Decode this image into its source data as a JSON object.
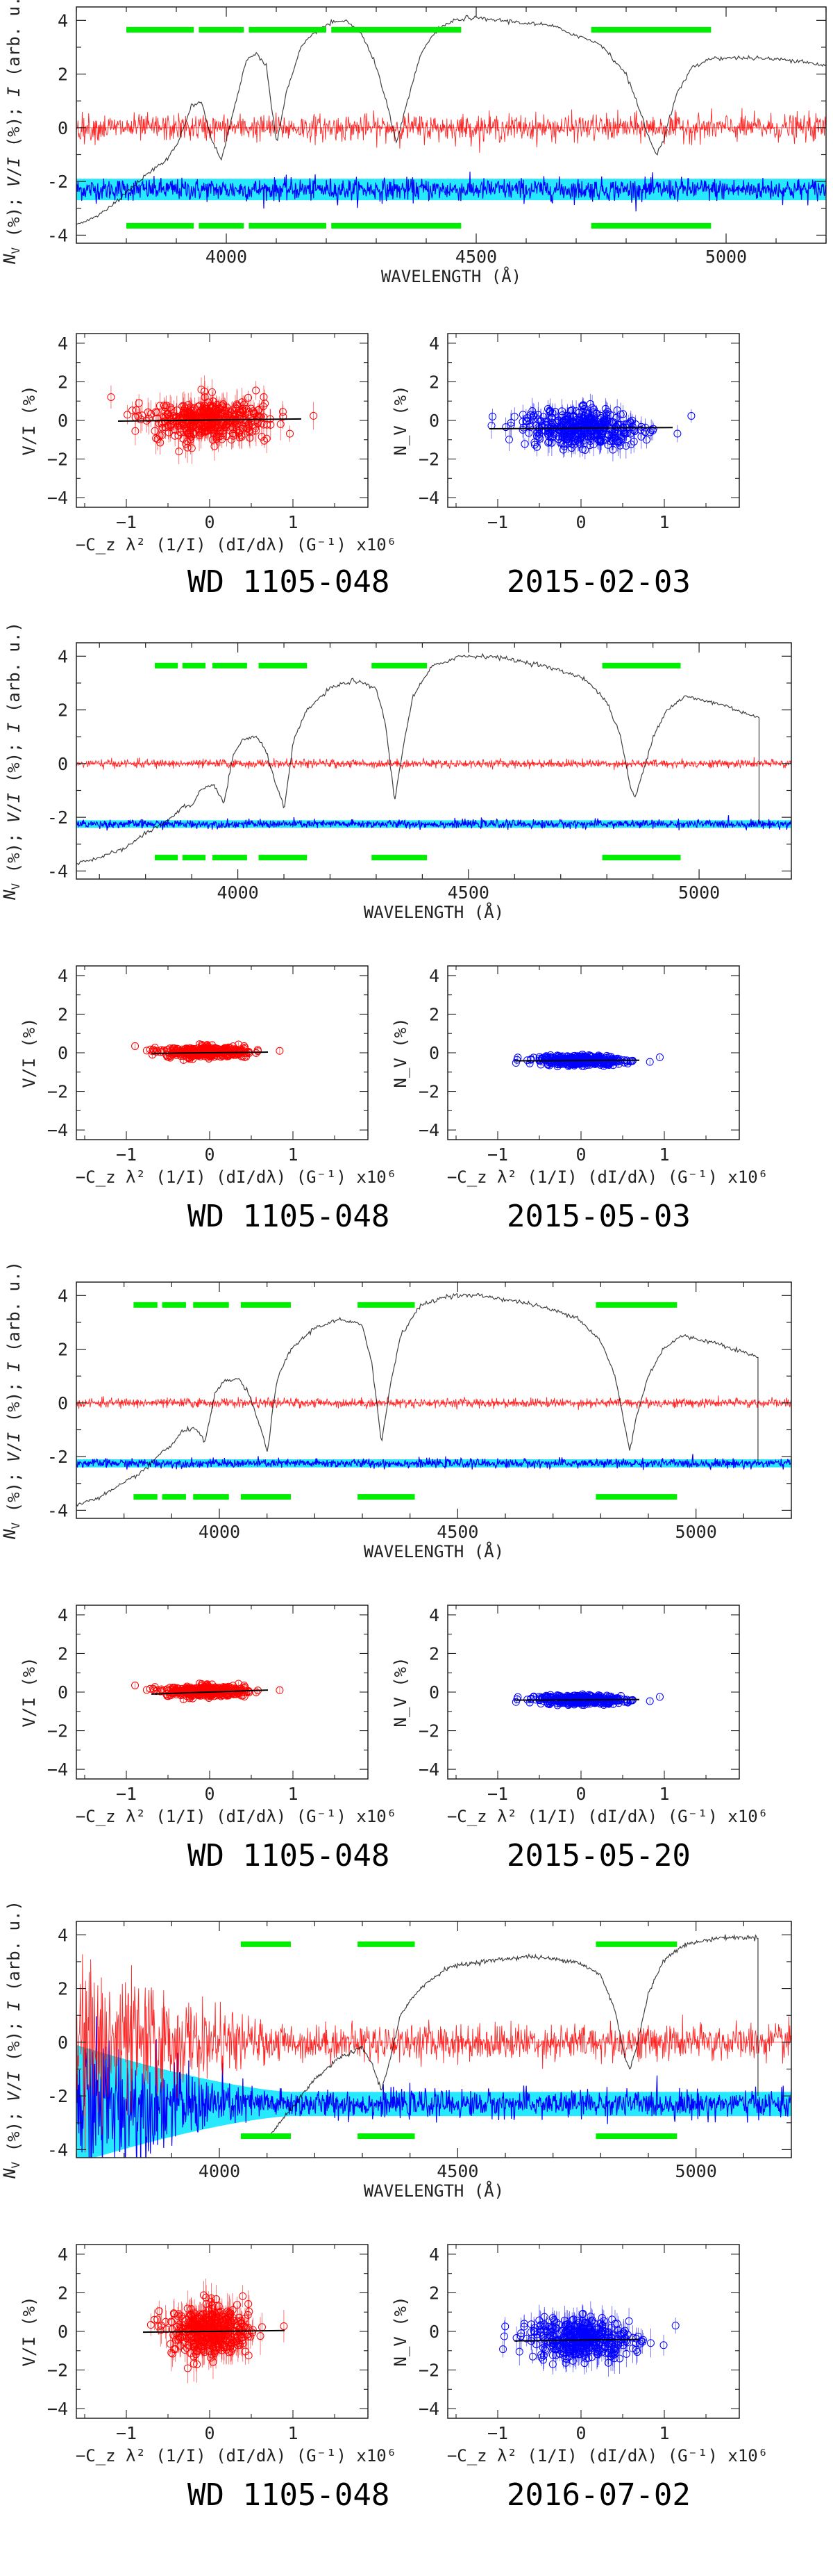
{
  "figure": {
    "palette": {
      "stokes_v": "#ff0000",
      "null": "#0000ff",
      "null_error": "#00e5ff",
      "intensity": "#000000",
      "mask": "#00ee00",
      "fit": "#000000"
    },
    "panels": [
      {
        "star": "WD 1105-048",
        "date": "2015-02-03",
        "spectrum": {
          "type": "line",
          "xlabel": "WAVELENGTH (Å)",
          "ylabel": "N_V (%); V/I (%); I (arb. u.)",
          "xlim": [
            3700,
            5200
          ],
          "ylim": [
            -4.3,
            4.5
          ],
          "xticks": [
            4000,
            4500,
            5000
          ],
          "yticks": [
            -4,
            -2,
            0,
            2,
            4
          ],
          "intensity_x": [
            3700,
            3750,
            3800,
            3850,
            3880,
            3900,
            3930,
            3950,
            3970,
            3990,
            4010,
            4040,
            4060,
            4080,
            4101,
            4120,
            4150,
            4180,
            4210,
            4240,
            4270,
            4300,
            4320,
            4340,
            4360,
            4390,
            4420,
            4450,
            4480,
            4550,
            4650,
            4750,
            4800,
            4830,
            4850,
            4861,
            4875,
            4900,
            4930,
            4970,
            5050,
            5150,
            5200
          ],
          "intensity_y": [
            -3.6,
            -3.2,
            -2.4,
            -1.6,
            -1.2,
            -0.7,
            0.8,
            1.0,
            -0.4,
            -1.2,
            0.3,
            2.5,
            2.8,
            2.3,
            -0.6,
            1.3,
            3.0,
            3.6,
            3.9,
            4.0,
            3.5,
            2.3,
            1.0,
            -0.6,
            0.8,
            2.8,
            3.6,
            3.95,
            4.1,
            4.0,
            3.8,
            3.1,
            2.0,
            0.5,
            -0.6,
            -1.0,
            -0.4,
            1.2,
            2.2,
            2.6,
            2.6,
            2.5,
            2.3
          ],
          "stokes_v_offset": 0,
          "stokes_v_noise": 0.55,
          "null_offset": -2.3,
          "null_noise": 0.45,
          "null_error_band": 0.4,
          "mask_levels": [
            3.65,
            -3.65
          ],
          "mask_ranges": [
            [
              3800,
              3935
            ],
            [
              3945,
              4035
            ],
            [
              4045,
              4200
            ],
            [
              4210,
              4470
            ],
            [
              4730,
              4970
            ]
          ]
        },
        "scatter_left": {
          "type": "scatter",
          "xlabel": "−C_z λ² (1/I) (dI/dλ) (G⁻¹) x10⁶",
          "ylabel": "V/I (%)",
          "xlim": [
            -1.6,
            1.9
          ],
          "ylim": [
            -4.5,
            4.5
          ],
          "xticks": [
            -1,
            0,
            1
          ],
          "yticks": [
            -4,
            -2,
            0,
            2,
            4
          ],
          "cloud_center": [
            0,
            0.05
          ],
          "cloud_spread": [
            0.35,
            0.55
          ],
          "error_bar": 0.6,
          "fit_slope": 0.05,
          "fit_intercept": 0.02,
          "fit_xrange": [
            -1.1,
            1.1
          ]
        },
        "scatter_right": {
          "type": "scatter",
          "xlabel": "",
          "ylabel": "N_V (%)",
          "xlim": [
            -1.6,
            1.9
          ],
          "ylim": [
            -4.5,
            4.5
          ],
          "xticks": [
            -1,
            0,
            1
          ],
          "yticks": [
            -4,
            -2,
            0,
            2,
            4
          ],
          "cloud_center": [
            0,
            -0.4
          ],
          "cloud_spread": [
            0.35,
            0.5
          ],
          "error_bar": 0.5,
          "fit_slope": 0.03,
          "fit_intercept": -0.4,
          "fit_xrange": [
            -1.1,
            1.1
          ]
        }
      },
      {
        "star": "WD 1105-048",
        "date": "2015-05-03",
        "spectrum": {
          "type": "line",
          "xlabel": "WAVELENGTH (Å)",
          "ylabel": "N_V (%); V/I (%); I (arb. u.)",
          "xlim": [
            3650,
            5200
          ],
          "ylim": [
            -4.3,
            4.5
          ],
          "xticks": [
            4000,
            4500,
            5000
          ],
          "yticks": [
            -4,
            -2,
            0,
            2,
            4
          ],
          "intensity_x": [
            3650,
            3700,
            3750,
            3800,
            3850,
            3880,
            3900,
            3920,
            3950,
            3970,
            3990,
            4010,
            4040,
            4060,
            4080,
            4101,
            4120,
            4150,
            4200,
            4250,
            4300,
            4320,
            4340,
            4360,
            4380,
            4420,
            4480,
            4550,
            4650,
            4750,
            4800,
            4830,
            4850,
            4861,
            4875,
            4900,
            4930,
            4970,
            5050,
            5130,
            5130
          ],
          "intensity_y": [
            -3.7,
            -3.5,
            -3.2,
            -2.6,
            -2.1,
            -1.6,
            -1.6,
            -1.0,
            -0.8,
            -1.5,
            0.3,
            0.9,
            1.0,
            0.5,
            -0.6,
            -1.7,
            0.8,
            2.0,
            2.8,
            3.1,
            2.8,
            1.5,
            -1.4,
            0.8,
            2.5,
            3.6,
            4.0,
            4.0,
            3.7,
            3.2,
            2.3,
            1.0,
            -0.8,
            -1.3,
            -0.5,
            1.0,
            2.0,
            2.5,
            2.2,
            1.7,
            -2.2
          ],
          "stokes_v_offset": 0,
          "stokes_v_noise": 0.18,
          "null_offset": -2.25,
          "null_noise": 0.17,
          "null_error_band": 0.14,
          "mask_levels": [
            3.65,
            -3.5
          ],
          "mask_ranges": [
            [
              3820,
              3870
            ],
            [
              3880,
              3930
            ],
            [
              3945,
              4020
            ],
            [
              4045,
              4150
            ],
            [
              4290,
              4410
            ],
            [
              4790,
              4960
            ]
          ]
        },
        "scatter_left": {
          "type": "scatter",
          "xlabel": "−C_z λ² (1/I) (dI/dλ) (G⁻¹) x10⁶",
          "ylabel": "V/I (%)",
          "xlim": [
            -1.6,
            1.9
          ],
          "ylim": [
            -4.5,
            4.5
          ],
          "xticks": [
            -1,
            0,
            1
          ],
          "yticks": [
            -4,
            -2,
            0,
            2,
            4
          ],
          "cloud_center": [
            -0.05,
            0.05
          ],
          "cloud_spread": [
            0.25,
            0.14
          ],
          "error_bar": 0.15,
          "fit_slope": 0.05,
          "fit_intercept": 0.0,
          "fit_xrange": [
            -0.7,
            0.7
          ]
        },
        "scatter_right": {
          "type": "scatter",
          "xlabel": "−C_z λ² (1/I) (dI/dλ) (G⁻¹) x10⁶",
          "ylabel": "N_V (%)",
          "xlim": [
            -1.6,
            1.9
          ],
          "ylim": [
            -4.5,
            4.5
          ],
          "xticks": [
            -1,
            0,
            1
          ],
          "yticks": [
            -4,
            -2,
            0,
            2,
            4
          ],
          "cloud_center": [
            0,
            -0.4
          ],
          "cloud_spread": [
            0.25,
            0.13
          ],
          "error_bar": 0.15,
          "fit_slope": 0.02,
          "fit_intercept": -0.4,
          "fit_xrange": [
            -0.8,
            0.7
          ]
        }
      },
      {
        "star": "WD 1105-048",
        "date": "2015-05-20",
        "spectrum": {
          "type": "line",
          "xlabel": "WAVELENGTH (Å)",
          "ylabel": "N_V (%); V/I (%); I (arb. u.)",
          "xlim": [
            3700,
            5200
          ],
          "ylim": [
            -4.3,
            4.5
          ],
          "xticks": [
            4000,
            4500,
            5000
          ],
          "yticks": [
            -4,
            -2,
            0,
            2,
            4
          ],
          "intensity_x": [
            3700,
            3750,
            3800,
            3850,
            3880,
            3900,
            3920,
            3950,
            3970,
            3990,
            4010,
            4040,
            4060,
            4080,
            4101,
            4120,
            4150,
            4200,
            4250,
            4300,
            4320,
            4340,
            4360,
            4380,
            4420,
            4480,
            4550,
            4650,
            4750,
            4800,
            4830,
            4850,
            4861,
            4875,
            4900,
            4930,
            4970,
            5050,
            5130,
            5130
          ],
          "intensity_y": [
            -3.8,
            -3.5,
            -3.0,
            -2.4,
            -1.8,
            -1.6,
            -1.1,
            -0.9,
            -1.5,
            0.3,
            0.8,
            0.9,
            0.4,
            -0.6,
            -1.8,
            0.8,
            2.0,
            2.8,
            3.1,
            2.9,
            1.5,
            -1.5,
            0.8,
            2.5,
            3.6,
            4.0,
            4.0,
            3.7,
            3.2,
            2.3,
            1.0,
            -0.8,
            -1.8,
            -0.5,
            1.0,
            2.0,
            2.5,
            2.2,
            1.7,
            -2.2
          ],
          "stokes_v_offset": 0,
          "stokes_v_noise": 0.2,
          "null_offset": -2.25,
          "null_noise": 0.18,
          "null_error_band": 0.15,
          "mask_levels": [
            3.65,
            -3.5
          ],
          "mask_ranges": [
            [
              3820,
              3870
            ],
            [
              3880,
              3930
            ],
            [
              3945,
              4020
            ],
            [
              4045,
              4150
            ],
            [
              4290,
              4410
            ],
            [
              4790,
              4960
            ]
          ]
        },
        "scatter_left": {
          "type": "scatter",
          "xlabel": "−C_z λ² (1/I) (dI/dλ) (G⁻¹) x10⁶",
          "ylabel": "V/I (%)",
          "xlim": [
            -1.6,
            1.9
          ],
          "ylim": [
            -4.5,
            4.5
          ],
          "xticks": [
            -1,
            0,
            1
          ],
          "yticks": [
            -4,
            -2,
            0,
            2,
            4
          ],
          "cloud_center": [
            -0.05,
            0.05
          ],
          "cloud_spread": [
            0.25,
            0.14
          ],
          "error_bar": 0.15,
          "fit_slope": 0.15,
          "fit_intercept": 0.0,
          "fit_xrange": [
            -0.7,
            0.7
          ]
        },
        "scatter_right": {
          "type": "scatter",
          "xlabel": "−C_z λ² (1/I) (dI/dλ) (G⁻¹) x10⁶",
          "ylabel": "N_V (%)",
          "xlim": [
            -1.6,
            1.9
          ],
          "ylim": [
            -4.5,
            4.5
          ],
          "xticks": [
            -1,
            0,
            1
          ],
          "yticks": [
            -4,
            -2,
            0,
            2,
            4
          ],
          "cloud_center": [
            0,
            -0.4
          ],
          "cloud_spread": [
            0.25,
            0.12
          ],
          "error_bar": 0.15,
          "fit_slope": 0.02,
          "fit_intercept": -0.4,
          "fit_xrange": [
            -0.8,
            0.7
          ]
        }
      },
      {
        "star": "WD 1105-048",
        "date": "2016-07-02",
        "spectrum": {
          "type": "line",
          "xlabel": "WAVELENGTH (Å)",
          "ylabel": "N_V (%); V/I (%); I (arb. u.)",
          "xlim": [
            3700,
            5200
          ],
          "ylim": [
            -4.3,
            4.5
          ],
          "xticks": [
            4000,
            4500,
            5000
          ],
          "yticks": [
            -4,
            -2,
            0,
            2,
            4
          ],
          "intensity_x": [
            4100,
            4150,
            4200,
            4250,
            4300,
            4320,
            4340,
            4360,
            4380,
            4420,
            4480,
            4550,
            4650,
            4750,
            4800,
            4830,
            4850,
            4861,
            4875,
            4900,
            4930,
            4970,
            5050,
            5130,
            5130
          ],
          "intensity_y": [
            -3.6,
            -2.5,
            -1.4,
            -0.6,
            -0.2,
            -0.8,
            -1.8,
            -0.5,
            1.0,
            2.0,
            2.8,
            3.0,
            3.2,
            3.0,
            2.5,
            1.2,
            -0.5,
            -1.0,
            -0.2,
            1.8,
            3.0,
            3.6,
            3.9,
            3.9,
            -2.0
          ],
          "stokes_v_offset": 0,
          "stokes_v_noise": 0.75,
          "stokes_v_noise_blue": 4.0,
          "null_offset": -2.3,
          "null_noise": 0.55,
          "null_noise_blue": 3.5,
          "null_error_band": 0.45,
          "null_error_band_blue": 2.2,
          "mask_levels": [
            3.65,
            -3.5
          ],
          "mask_ranges": [
            [
              4045,
              4150
            ],
            [
              4290,
              4410
            ],
            [
              4790,
              4960
            ]
          ]
        },
        "scatter_left": {
          "type": "scatter",
          "xlabel": "−C_z λ² (1/I) (dI/dλ) (G⁻¹) x10⁶",
          "ylabel": "V/I (%)",
          "xlim": [
            -1.6,
            1.9
          ],
          "ylim": [
            -4.5,
            4.5
          ],
          "xticks": [
            -1,
            0,
            1
          ],
          "yticks": [
            -4,
            -2,
            0,
            2,
            4
          ],
          "cloud_center": [
            0,
            0.05
          ],
          "cloud_spread": [
            0.25,
            0.65
          ],
          "error_bar": 0.7,
          "fit_slope": 0.05,
          "fit_intercept": 0.0,
          "fit_xrange": [
            -0.8,
            0.9
          ]
        },
        "scatter_right": {
          "type": "scatter",
          "xlabel": "−C_z λ² (1/I) (dI/dλ) (G⁻¹) x10⁶",
          "ylabel": "N_V (%)",
          "xlim": [
            -1.6,
            1.9
          ],
          "ylim": [
            -4.5,
            4.5
          ],
          "xticks": [
            -1,
            0,
            1
          ],
          "yticks": [
            -4,
            -2,
            0,
            2,
            4
          ],
          "cloud_center": [
            0,
            -0.4
          ],
          "cloud_spread": [
            0.3,
            0.55
          ],
          "error_bar": 0.6,
          "fit_slope": 0.05,
          "fit_intercept": -0.45,
          "fit_xrange": [
            -0.8,
            0.7
          ]
        }
      }
    ]
  }
}
